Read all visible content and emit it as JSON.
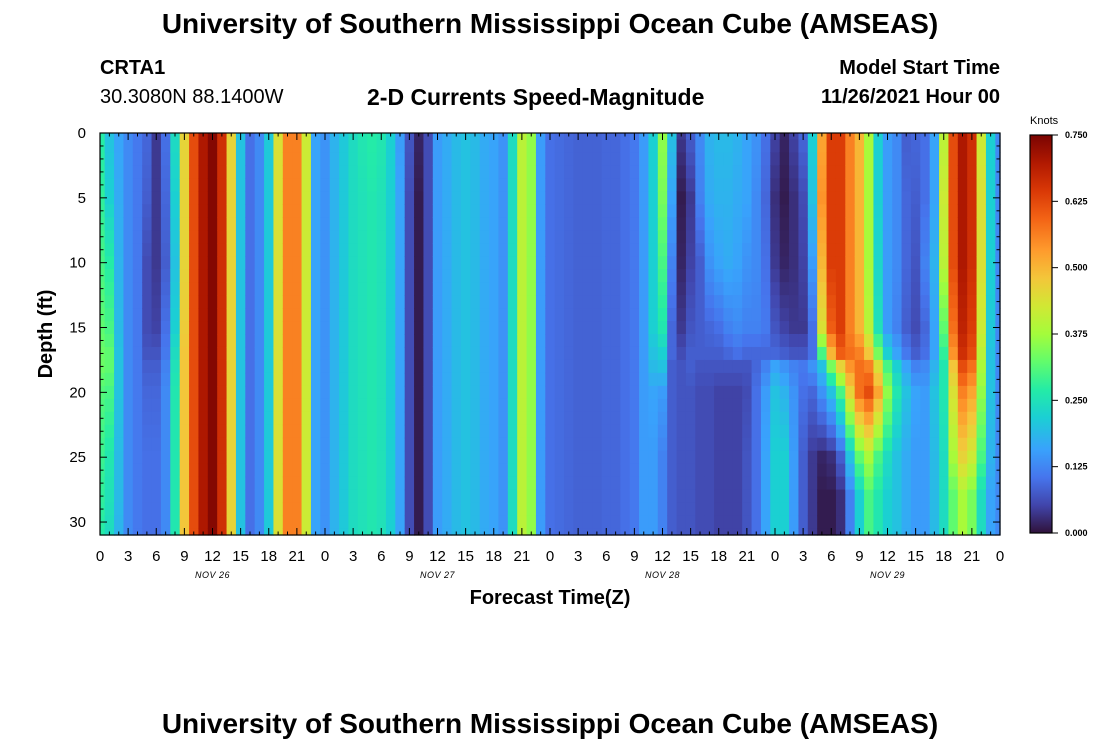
{
  "header": {
    "title_top": "University of Southern Mississippi Ocean Cube (AMSEAS)",
    "station_id": "CRTA1",
    "station_coords": "30.3080N  88.1400W",
    "chart_title": "2-D Currents Speed-Magnitude",
    "model_start_label": "Model Start Time",
    "model_start_value": "11/26/2021 Hour 00",
    "title_bottom": "University of Southern Mississippi Ocean Cube (AMSEAS)"
  },
  "chart_data": {
    "type": "heatmap",
    "title": "2-D Currents Speed-Magnitude",
    "xlabel": "Forecast Time(Z)",
    "ylabel": "Depth (ft)",
    "x_range_hours": [
      0,
      96
    ],
    "y_range_ft": [
      0,
      31
    ],
    "x_tick_labels": [
      "0",
      "3",
      "6",
      "9",
      "12",
      "15",
      "18",
      "21",
      "0",
      "3",
      "6",
      "9",
      "12",
      "15",
      "18",
      "21",
      "0",
      "3",
      "6",
      "9",
      "12",
      "15",
      "18",
      "21",
      "0",
      "3",
      "6",
      "9",
      "12",
      "15",
      "18",
      "21",
      "0"
    ],
    "date_labels": [
      {
        "label": "NOV 26",
        "hour": 12
      },
      {
        "label": "NOV 27",
        "hour": 36
      },
      {
        "label": "NOV 28",
        "hour": 60
      },
      {
        "label": "NOV 29",
        "hour": 84
      }
    ],
    "y_ticks": [
      0,
      5,
      10,
      15,
      20,
      25,
      30
    ],
    "colorbar": {
      "unit": "Knots",
      "min": 0.0,
      "max": 0.75,
      "tick_values": [
        0.0,
        0.125,
        0.25,
        0.375,
        0.5,
        0.625,
        0.75
      ],
      "tick_labels": [
        "0.000",
        "0.125",
        "0.250",
        "0.375",
        "0.500",
        "0.625",
        "0.750"
      ]
    },
    "hours": [
      0,
      1,
      2,
      3,
      4,
      5,
      6,
      7,
      8,
      9,
      10,
      11,
      12,
      13,
      14,
      15,
      16,
      17,
      18,
      19,
      20,
      21,
      22,
      23,
      24,
      25,
      26,
      27,
      28,
      29,
      30,
      31,
      32,
      33,
      34,
      35,
      36,
      37,
      38,
      39,
      40,
      41,
      42,
      43,
      44,
      45,
      46,
      47,
      48,
      49,
      50,
      51,
      52,
      53,
      54,
      55,
      56,
      57,
      58,
      59,
      60,
      61,
      62,
      63,
      64,
      65,
      66,
      67,
      68,
      69,
      70,
      71,
      72,
      73,
      74,
      75,
      76,
      77,
      78,
      79,
      80,
      81,
      82,
      83,
      84,
      85,
      86,
      87,
      88,
      89,
      90,
      91,
      92,
      93,
      94,
      95,
      96
    ],
    "depths_ft": [
      0,
      5,
      10,
      15,
      17,
      18,
      20,
      25,
      28,
      31
    ],
    "speed_knots_by_hour": [
      [
        0.27,
        0.28,
        0.3,
        0.32,
        0.33,
        0.33,
        0.31,
        0.29,
        0.28,
        0.27
      ],
      [
        0.2,
        0.22,
        0.27,
        0.3,
        0.32,
        0.32,
        0.3,
        0.26,
        0.25,
        0.24
      ],
      [
        0.16,
        0.17,
        0.18,
        0.19,
        0.2,
        0.2,
        0.2,
        0.19,
        0.19,
        0.18
      ],
      [
        0.13,
        0.13,
        0.13,
        0.13,
        0.13,
        0.13,
        0.13,
        0.13,
        0.13,
        0.13
      ],
      [
        0.11,
        0.11,
        0.11,
        0.11,
        0.11,
        0.11,
        0.11,
        0.11,
        0.11,
        0.11
      ],
      [
        0.09,
        0.08,
        0.06,
        0.06,
        0.07,
        0.08,
        0.09,
        0.1,
        0.1,
        0.1
      ],
      [
        0.04,
        0.04,
        0.04,
        0.05,
        0.07,
        0.08,
        0.09,
        0.1,
        0.1,
        0.1
      ],
      [
        0.1,
        0.09,
        0.08,
        0.1,
        0.11,
        0.12,
        0.13,
        0.13,
        0.13,
        0.13
      ],
      [
        0.24,
        0.22,
        0.2,
        0.22,
        0.24,
        0.25,
        0.26,
        0.26,
        0.26,
        0.26
      ],
      [
        0.46,
        0.46,
        0.46,
        0.47,
        0.48,
        0.48,
        0.48,
        0.48,
        0.48,
        0.48
      ],
      [
        0.62,
        0.62,
        0.62,
        0.62,
        0.62,
        0.62,
        0.62,
        0.62,
        0.62,
        0.62
      ],
      [
        0.7,
        0.7,
        0.7,
        0.7,
        0.7,
        0.7,
        0.7,
        0.7,
        0.7,
        0.7
      ],
      [
        0.74,
        0.74,
        0.74,
        0.74,
        0.74,
        0.74,
        0.74,
        0.74,
        0.74,
        0.74
      ],
      [
        0.66,
        0.66,
        0.66,
        0.66,
        0.66,
        0.66,
        0.66,
        0.66,
        0.66,
        0.66
      ],
      [
        0.46,
        0.46,
        0.46,
        0.46,
        0.46,
        0.46,
        0.46,
        0.46,
        0.46,
        0.46
      ],
      [
        0.2,
        0.2,
        0.2,
        0.2,
        0.2,
        0.2,
        0.2,
        0.2,
        0.2,
        0.2
      ],
      [
        0.1,
        0.1,
        0.1,
        0.1,
        0.1,
        0.1,
        0.1,
        0.1,
        0.1,
        0.1
      ],
      [
        0.13,
        0.13,
        0.13,
        0.13,
        0.13,
        0.13,
        0.13,
        0.13,
        0.13,
        0.13
      ],
      [
        0.21,
        0.21,
        0.21,
        0.21,
        0.21,
        0.21,
        0.21,
        0.21,
        0.21,
        0.21
      ],
      [
        0.44,
        0.44,
        0.44,
        0.44,
        0.44,
        0.44,
        0.44,
        0.44,
        0.44,
        0.44
      ],
      [
        0.56,
        0.56,
        0.56,
        0.56,
        0.56,
        0.56,
        0.56,
        0.56,
        0.56,
        0.56
      ],
      [
        0.56,
        0.56,
        0.56,
        0.56,
        0.56,
        0.56,
        0.56,
        0.56,
        0.56,
        0.56
      ],
      [
        0.42,
        0.42,
        0.42,
        0.42,
        0.42,
        0.42,
        0.42,
        0.42,
        0.42,
        0.42
      ],
      [
        0.16,
        0.16,
        0.16,
        0.16,
        0.16,
        0.16,
        0.16,
        0.16,
        0.16,
        0.16
      ],
      [
        0.14,
        0.14,
        0.14,
        0.14,
        0.14,
        0.14,
        0.14,
        0.14,
        0.14,
        0.14
      ],
      [
        0.18,
        0.18,
        0.18,
        0.18,
        0.18,
        0.18,
        0.18,
        0.18,
        0.18,
        0.18
      ],
      [
        0.21,
        0.21,
        0.21,
        0.21,
        0.21,
        0.21,
        0.21,
        0.21,
        0.21,
        0.21
      ],
      [
        0.24,
        0.24,
        0.24,
        0.24,
        0.24,
        0.24,
        0.24,
        0.24,
        0.24,
        0.24
      ],
      [
        0.26,
        0.25,
        0.25,
        0.25,
        0.25,
        0.25,
        0.25,
        0.25,
        0.25,
        0.25
      ],
      [
        0.27,
        0.26,
        0.26,
        0.26,
        0.26,
        0.26,
        0.26,
        0.26,
        0.26,
        0.26
      ],
      [
        0.26,
        0.25,
        0.25,
        0.25,
        0.25,
        0.25,
        0.25,
        0.25,
        0.25,
        0.25
      ],
      [
        0.22,
        0.22,
        0.22,
        0.22,
        0.22,
        0.22,
        0.22,
        0.22,
        0.22,
        0.22
      ],
      [
        0.15,
        0.16,
        0.16,
        0.16,
        0.16,
        0.16,
        0.16,
        0.16,
        0.16,
        0.16
      ],
      [
        0.07,
        0.06,
        0.06,
        0.06,
        0.06,
        0.06,
        0.06,
        0.06,
        0.06,
        0.06
      ],
      [
        0.02,
        0.01,
        0.01,
        0.01,
        0.01,
        0.01,
        0.01,
        0.01,
        0.01,
        0.01
      ],
      [
        0.06,
        0.06,
        0.06,
        0.06,
        0.06,
        0.06,
        0.06,
        0.06,
        0.06,
        0.06
      ],
      [
        0.15,
        0.15,
        0.15,
        0.15,
        0.15,
        0.15,
        0.15,
        0.15,
        0.15,
        0.15
      ],
      [
        0.17,
        0.17,
        0.17,
        0.17,
        0.17,
        0.17,
        0.17,
        0.17,
        0.17,
        0.17
      ],
      [
        0.19,
        0.19,
        0.19,
        0.19,
        0.19,
        0.19,
        0.19,
        0.19,
        0.19,
        0.19
      ],
      [
        0.2,
        0.2,
        0.2,
        0.2,
        0.2,
        0.2,
        0.2,
        0.2,
        0.2,
        0.2
      ],
      [
        0.19,
        0.19,
        0.19,
        0.19,
        0.19,
        0.19,
        0.19,
        0.19,
        0.19,
        0.19
      ],
      [
        0.17,
        0.17,
        0.17,
        0.17,
        0.17,
        0.17,
        0.17,
        0.17,
        0.17,
        0.17
      ],
      [
        0.16,
        0.16,
        0.16,
        0.16,
        0.16,
        0.16,
        0.16,
        0.16,
        0.16,
        0.16
      ],
      [
        0.14,
        0.14,
        0.14,
        0.14,
        0.14,
        0.14,
        0.14,
        0.14,
        0.14,
        0.14
      ],
      [
        0.24,
        0.24,
        0.24,
        0.24,
        0.24,
        0.24,
        0.24,
        0.24,
        0.24,
        0.24
      ],
      [
        0.4,
        0.4,
        0.4,
        0.4,
        0.4,
        0.4,
        0.4,
        0.4,
        0.4,
        0.4
      ],
      [
        0.36,
        0.36,
        0.36,
        0.36,
        0.36,
        0.36,
        0.36,
        0.36,
        0.36,
        0.36
      ],
      [
        0.15,
        0.15,
        0.15,
        0.15,
        0.15,
        0.15,
        0.15,
        0.15,
        0.15,
        0.15
      ],
      [
        0.1,
        0.1,
        0.1,
        0.1,
        0.1,
        0.1,
        0.1,
        0.1,
        0.1,
        0.1
      ],
      [
        0.095,
        0.095,
        0.095,
        0.095,
        0.095,
        0.095,
        0.095,
        0.095,
        0.095,
        0.095
      ],
      [
        0.09,
        0.09,
        0.09,
        0.09,
        0.09,
        0.09,
        0.09,
        0.09,
        0.09,
        0.09
      ],
      [
        0.085,
        0.085,
        0.085,
        0.085,
        0.085,
        0.085,
        0.085,
        0.085,
        0.085,
        0.085
      ],
      [
        0.085,
        0.085,
        0.085,
        0.085,
        0.085,
        0.085,
        0.085,
        0.085,
        0.085,
        0.085
      ],
      [
        0.085,
        0.085,
        0.085,
        0.085,
        0.085,
        0.085,
        0.085,
        0.085,
        0.085,
        0.085
      ],
      [
        0.09,
        0.09,
        0.09,
        0.09,
        0.09,
        0.09,
        0.09,
        0.09,
        0.09,
        0.09
      ],
      [
        0.09,
        0.09,
        0.09,
        0.09,
        0.09,
        0.09,
        0.09,
        0.09,
        0.09,
        0.09
      ],
      [
        0.1,
        0.1,
        0.1,
        0.1,
        0.1,
        0.1,
        0.1,
        0.1,
        0.1,
        0.1
      ],
      [
        0.11,
        0.11,
        0.11,
        0.11,
        0.11,
        0.11,
        0.11,
        0.11,
        0.11,
        0.11
      ],
      [
        0.15,
        0.15,
        0.15,
        0.15,
        0.15,
        0.15,
        0.15,
        0.15,
        0.15,
        0.15
      ],
      [
        0.22,
        0.22,
        0.22,
        0.22,
        0.2,
        0.19,
        0.16,
        0.15,
        0.15,
        0.15
      ],
      [
        0.36,
        0.34,
        0.3,
        0.26,
        0.22,
        0.2,
        0.15,
        0.12,
        0.12,
        0.12
      ],
      [
        0.2,
        0.16,
        0.12,
        0.09,
        0.09,
        0.08,
        0.08,
        0.08,
        0.08,
        0.08
      ],
      [
        0.04,
        0.01,
        0.02,
        0.04,
        0.06,
        0.07,
        0.07,
        0.07,
        0.07,
        0.07
      ],
      [
        0.08,
        0.04,
        0.05,
        0.07,
        0.08,
        0.08,
        0.07,
        0.07,
        0.07,
        0.07
      ],
      [
        0.13,
        0.12,
        0.08,
        0.08,
        0.08,
        0.07,
        0.06,
        0.06,
        0.06,
        0.06
      ],
      [
        0.18,
        0.17,
        0.14,
        0.09,
        0.08,
        0.07,
        0.06,
        0.06,
        0.06,
        0.06
      ],
      [
        0.19,
        0.18,
        0.16,
        0.1,
        0.08,
        0.07,
        0.05,
        0.05,
        0.05,
        0.05
      ],
      [
        0.19,
        0.18,
        0.17,
        0.12,
        0.09,
        0.07,
        0.05,
        0.05,
        0.05,
        0.05
      ],
      [
        0.18,
        0.17,
        0.16,
        0.13,
        0.1,
        0.07,
        0.05,
        0.05,
        0.05,
        0.05
      ],
      [
        0.16,
        0.16,
        0.14,
        0.12,
        0.09,
        0.07,
        0.06,
        0.07,
        0.07,
        0.07
      ],
      [
        0.14,
        0.13,
        0.13,
        0.12,
        0.09,
        0.09,
        0.1,
        0.1,
        0.1,
        0.1
      ],
      [
        0.1,
        0.09,
        0.1,
        0.11,
        0.09,
        0.12,
        0.15,
        0.16,
        0.16,
        0.16
      ],
      [
        0.05,
        0.03,
        0.04,
        0.07,
        0.09,
        0.16,
        0.2,
        0.22,
        0.22,
        0.22
      ],
      [
        0.02,
        0.01,
        0.02,
        0.05,
        0.08,
        0.14,
        0.18,
        0.22,
        0.22,
        0.22
      ],
      [
        0.05,
        0.03,
        0.03,
        0.04,
        0.07,
        0.12,
        0.14,
        0.15,
        0.15,
        0.15
      ],
      [
        0.09,
        0.06,
        0.05,
        0.04,
        0.07,
        0.11,
        0.1,
        0.08,
        0.08,
        0.08
      ],
      [
        0.22,
        0.2,
        0.15,
        0.1,
        0.1,
        0.14,
        0.09,
        0.04,
        0.04,
        0.04
      ],
      [
        0.52,
        0.54,
        0.5,
        0.44,
        0.3,
        0.2,
        0.14,
        0.02,
        0.01,
        0.01
      ],
      [
        0.64,
        0.64,
        0.64,
        0.6,
        0.5,
        0.34,
        0.2,
        0.03,
        0.01,
        0.01
      ],
      [
        0.64,
        0.64,
        0.64,
        0.64,
        0.6,
        0.46,
        0.3,
        0.08,
        0.03,
        0.03
      ],
      [
        0.56,
        0.56,
        0.56,
        0.56,
        0.58,
        0.54,
        0.46,
        0.2,
        0.12,
        0.12
      ],
      [
        0.5,
        0.5,
        0.5,
        0.5,
        0.56,
        0.58,
        0.58,
        0.32,
        0.22,
        0.22
      ],
      [
        0.38,
        0.38,
        0.38,
        0.4,
        0.48,
        0.56,
        0.62,
        0.38,
        0.3,
        0.3
      ],
      [
        0.22,
        0.22,
        0.23,
        0.25,
        0.34,
        0.44,
        0.52,
        0.3,
        0.26,
        0.26
      ],
      [
        0.15,
        0.15,
        0.15,
        0.15,
        0.22,
        0.3,
        0.36,
        0.24,
        0.22,
        0.22
      ],
      [
        0.13,
        0.13,
        0.13,
        0.12,
        0.16,
        0.22,
        0.26,
        0.2,
        0.2,
        0.2
      ],
      [
        0.08,
        0.09,
        0.09,
        0.08,
        0.11,
        0.16,
        0.2,
        0.17,
        0.17,
        0.17
      ],
      [
        0.09,
        0.08,
        0.07,
        0.06,
        0.08,
        0.12,
        0.16,
        0.15,
        0.15,
        0.15
      ],
      [
        0.1,
        0.1,
        0.12,
        0.09,
        0.1,
        0.13,
        0.15,
        0.15,
        0.15,
        0.15
      ],
      [
        0.16,
        0.16,
        0.18,
        0.16,
        0.16,
        0.18,
        0.2,
        0.19,
        0.19,
        0.19
      ],
      [
        0.4,
        0.42,
        0.4,
        0.32,
        0.28,
        0.26,
        0.26,
        0.24,
        0.24,
        0.24
      ],
      [
        0.62,
        0.62,
        0.62,
        0.58,
        0.54,
        0.48,
        0.44,
        0.38,
        0.32,
        0.32
      ],
      [
        0.7,
        0.7,
        0.7,
        0.68,
        0.66,
        0.62,
        0.56,
        0.46,
        0.38,
        0.38
      ],
      [
        0.66,
        0.66,
        0.66,
        0.64,
        0.62,
        0.58,
        0.52,
        0.42,
        0.34,
        0.34
      ],
      [
        0.42,
        0.44,
        0.44,
        0.42,
        0.4,
        0.38,
        0.36,
        0.3,
        0.24,
        0.24
      ],
      [
        0.22,
        0.22,
        0.22,
        0.21,
        0.2,
        0.2,
        0.2,
        0.18,
        0.16,
        0.16
      ],
      [
        0.13,
        0.13,
        0.13,
        0.13,
        0.13,
        0.13,
        0.13,
        0.13,
        0.13,
        0.13
      ]
    ]
  }
}
